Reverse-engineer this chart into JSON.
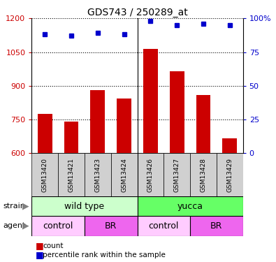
{
  "title": "GDS743 / 250289_at",
  "samples": [
    "GSM13420",
    "GSM13421",
    "GSM13423",
    "GSM13424",
    "GSM13426",
    "GSM13427",
    "GSM13428",
    "GSM13429"
  ],
  "counts": [
    775,
    740,
    880,
    845,
    1065,
    965,
    860,
    665
  ],
  "percentiles": [
    88,
    87,
    89,
    88,
    98,
    95,
    96,
    95
  ],
  "ylim_left": [
    600,
    1200
  ],
  "ylim_right": [
    0,
    100
  ],
  "yticks_left": [
    600,
    750,
    900,
    1050,
    1200
  ],
  "yticks_right": [
    0,
    25,
    50,
    75,
    100
  ],
  "bar_color": "#cc0000",
  "dot_color": "#0000cc",
  "strain_labels": [
    "wild type",
    "yucca"
  ],
  "strain_ranges": [
    [
      0,
      4
    ],
    [
      4,
      8
    ]
  ],
  "strain_colors": [
    "#ccffcc",
    "#66ff66"
  ],
  "agent_labels": [
    "control",
    "BR",
    "control",
    "BR"
  ],
  "agent_ranges": [
    [
      0,
      2
    ],
    [
      2,
      4
    ],
    [
      4,
      6
    ],
    [
      6,
      8
    ]
  ],
  "agent_colors": [
    "#ffccff",
    "#ee66ee",
    "#ffccff",
    "#ee66ee"
  ],
  "grid_color": "#000000",
  "separator_color": "#000000",
  "gsm_box_color": "#d0d0d0",
  "background_color": "#ffffff"
}
